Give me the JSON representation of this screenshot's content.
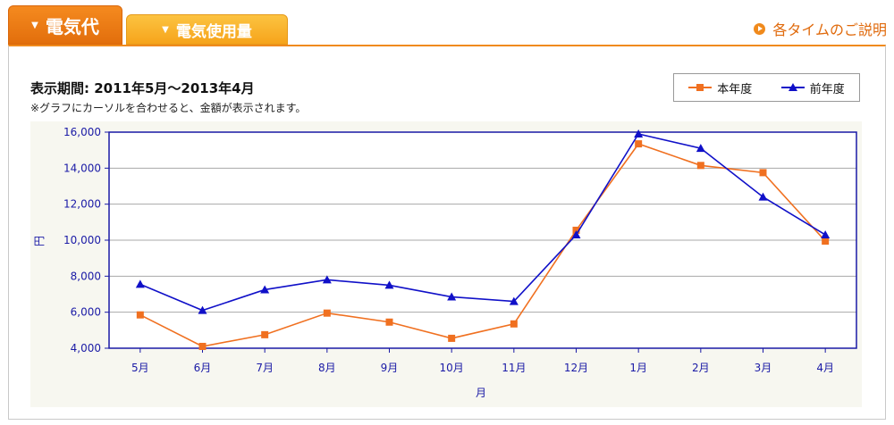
{
  "tabs": [
    {
      "label": "電気代",
      "active": true
    },
    {
      "label": "電気使用量",
      "active": false
    }
  ],
  "help_link": "各タイムのご説明",
  "period_label": "表示期間: 2011年5月〜2013年4月",
  "note": "※グラフにカーソルを合わせると、金額が表示されます。",
  "colors": {
    "current": "#f07020",
    "previous": "#1010c8",
    "accent": "#f08a1c"
  },
  "chart_data": {
    "type": "line",
    "title": "",
    "xlabel": "月",
    "ylabel": "円",
    "categories": [
      "5月",
      "6月",
      "7月",
      "8月",
      "9月",
      "10月",
      "11月",
      "12月",
      "1月",
      "2月",
      "3月",
      "4月"
    ],
    "ylim": [
      4000,
      16000
    ],
    "yticks": [
      4000,
      6000,
      8000,
      10000,
      12000,
      14000,
      16000
    ],
    "ytick_labels": [
      "4,000",
      "6,000",
      "8,000",
      "10,000",
      "12,000",
      "14,000",
      "16,000"
    ],
    "grid": true,
    "legend_position": "top-right",
    "series": [
      {
        "name": "本年度",
        "marker": "square",
        "values": [
          5850,
          4100,
          4750,
          5950,
          5450,
          4550,
          5350,
          10550,
          15350,
          14150,
          13750,
          9950
        ]
      },
      {
        "name": "前年度",
        "marker": "triangle",
        "values": [
          7550,
          6100,
          7250,
          7800,
          7500,
          6850,
          6600,
          10300,
          15900,
          15100,
          12400,
          10300
        ]
      }
    ]
  }
}
